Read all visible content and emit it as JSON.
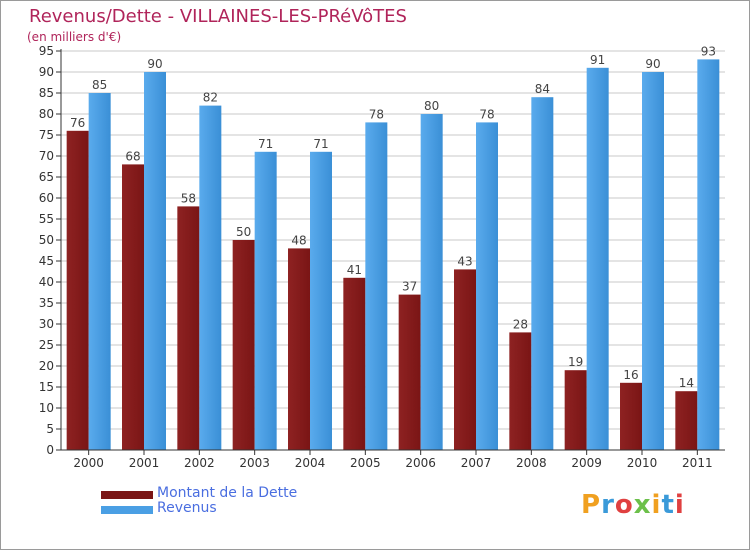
{
  "header": {
    "title": "Revenus/Dette - VILLAINES-LES-PRéVôTES",
    "subtitle": "(en milliers d'€)"
  },
  "logo": {
    "text": "Proxiti"
  },
  "colors": {
    "debt": "#7a1515",
    "revenue": "#4a9fe4",
    "title": "#b0245a",
    "legend_text": "#4a6ee0",
    "grid": "#c8c8c8"
  },
  "legend": [
    {
      "label": "Montant de la Dette",
      "series": "debt"
    },
    {
      "label": "Revenus",
      "series": "revenue"
    }
  ],
  "chart_data": {
    "type": "bar",
    "title": "Revenus/Dette - VILLAINES-LES-PRéVôTES",
    "subtitle": "(en milliers d'€)",
    "categories": [
      "2000",
      "2001",
      "2002",
      "2003",
      "2004",
      "2005",
      "2006",
      "2007",
      "2008",
      "2009",
      "2010",
      "2011"
    ],
    "series": [
      {
        "name": "Montant de la Dette",
        "values": [
          76,
          68,
          58,
          50,
          48,
          41,
          37,
          43,
          28,
          19,
          16,
          14
        ]
      },
      {
        "name": "Revenus",
        "values": [
          85,
          90,
          82,
          71,
          71,
          78,
          80,
          78,
          84,
          91,
          90,
          93
        ]
      }
    ],
    "ylim": [
      0,
      95
    ],
    "yticks": [
      0,
      5,
      10,
      15,
      20,
      25,
      30,
      35,
      40,
      45,
      50,
      55,
      60,
      65,
      70,
      75,
      80,
      85,
      90,
      95
    ],
    "grid": true,
    "legend_position": "bottom-left",
    "data_labels": true
  }
}
